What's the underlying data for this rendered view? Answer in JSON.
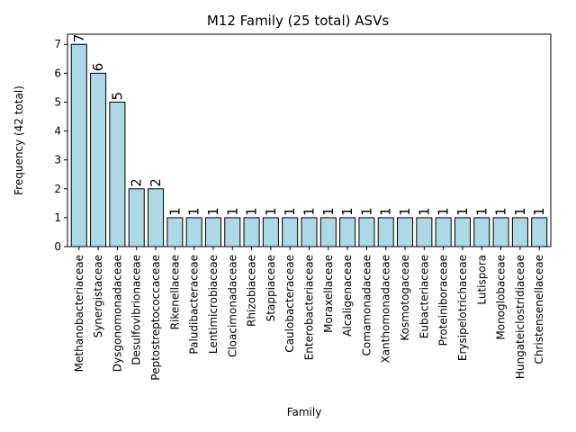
{
  "chart_data": {
    "type": "bar",
    "title": "M12 Family (25 total) ASVs",
    "xlabel": "Family",
    "ylabel": "Frequency (42 total)",
    "ylim": [
      0,
      7.35
    ],
    "yticks": [
      0,
      1,
      2,
      3,
      4,
      5,
      6,
      7
    ],
    "grid": false,
    "colors": {
      "bar_fill": "#add8e6",
      "bar_edge": "#000000"
    },
    "categories": [
      "Methanobacteriaceae",
      "Synergistaceae",
      "Dysgonomonadaceae",
      "Desulfovibrionaceae",
      "Peptostreptococcaceae",
      "Rikenellaceae",
      "Paludibacteraceae",
      "Lentimicrobiaceae",
      "Cloacimonadaceae",
      "Rhizobiaceae",
      "Stappiaceae",
      "Caulobacteraceae",
      "Enterobacteriaceae",
      "Moraxellaceae",
      "Alcaligenaceae",
      "Comamonadaceae",
      "Xanthomonadaceae",
      "Kosmotogaceae",
      "Eubacteriaceae",
      "Proteiniboraceae",
      "Erysipelotrichaceae",
      "Lutispora",
      "Monoglobaceae",
      "Hungateiclostridiaceae",
      "Christensenellaceae"
    ],
    "values": [
      7,
      6,
      5,
      2,
      2,
      1,
      1,
      1,
      1,
      1,
      1,
      1,
      1,
      1,
      1,
      1,
      1,
      1,
      1,
      1,
      1,
      1,
      1,
      1,
      1
    ]
  }
}
